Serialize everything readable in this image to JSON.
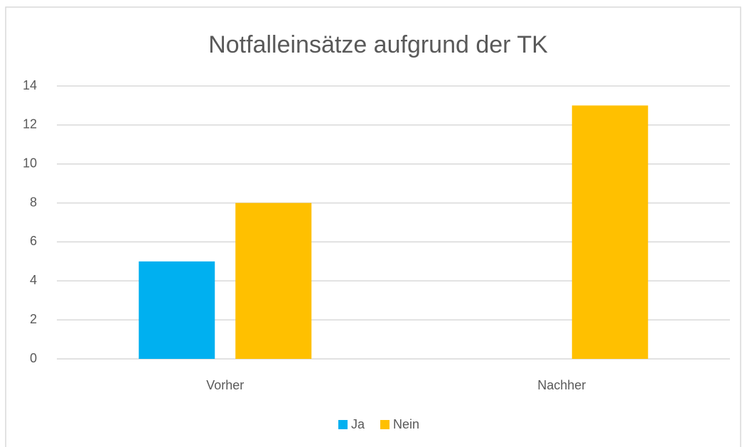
{
  "chart_data": {
    "type": "bar",
    "title": "Notfalleinsätze aufgrund der TK",
    "categories": [
      "Vorher",
      "Nachher"
    ],
    "series": [
      {
        "name": "Ja",
        "color": "#00b0f0",
        "values": [
          5,
          0
        ]
      },
      {
        "name": "Nein",
        "color": "#ffc000",
        "values": [
          8,
          13
        ]
      }
    ],
    "ylim": [
      0,
      14
    ],
    "yticks": [
      0,
      2,
      4,
      6,
      8,
      10,
      12,
      14
    ],
    "grid": true,
    "legend": "bottom"
  }
}
